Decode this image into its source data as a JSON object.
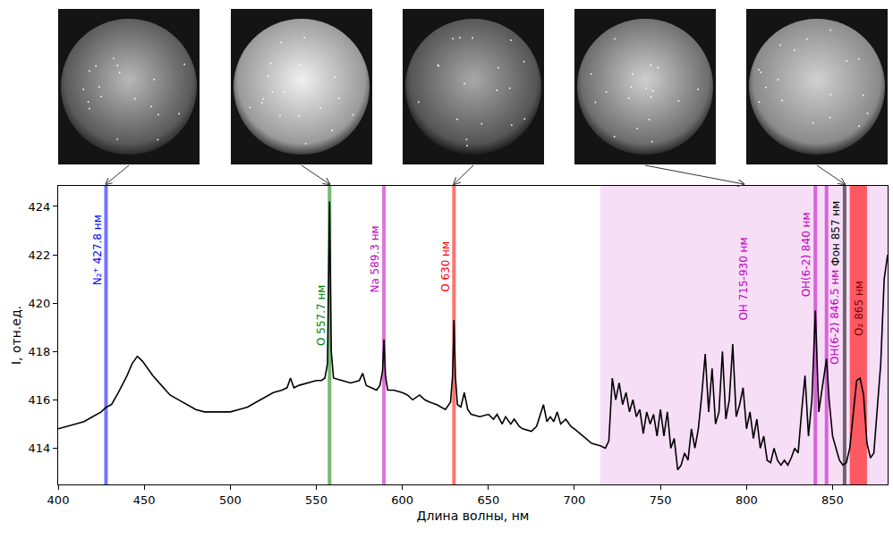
{
  "chart_data": {
    "type": "line",
    "xlabel": "Длина волны, нм",
    "ylabel": "I, отн.ед.",
    "xlim": [
      400,
      882
    ],
    "xticks": [
      400,
      450,
      500,
      550,
      600,
      650,
      700,
      750,
      800,
      850
    ],
    "ylim": [
      412.5,
      424.85
    ],
    "yticks": [
      414,
      416,
      418,
      420,
      422,
      424
    ],
    "grid": false,
    "color": "#000000",
    "x": [
      400,
      405,
      410,
      415,
      420,
      425,
      428,
      431,
      435,
      440,
      443,
      446,
      449,
      452,
      455,
      460,
      465,
      470,
      475,
      480,
      485,
      490,
      495,
      500,
      505,
      510,
      515,
      520,
      525,
      530,
      533,
      535,
      537,
      540,
      545,
      550,
      553,
      555,
      556.5,
      557.7,
      558.7,
      560,
      565,
      570,
      575,
      577,
      579,
      582,
      585,
      587,
      588.5,
      589.3,
      590.2,
      591.5,
      595,
      600,
      603,
      606,
      610,
      613,
      616,
      620,
      625,
      628,
      629.2,
      630,
      630.8,
      632,
      634,
      636,
      638,
      640,
      645,
      650,
      653,
      655,
      658,
      660,
      663,
      665,
      668,
      670,
      675,
      678,
      680,
      682,
      684,
      686,
      688,
      690,
      692,
      695,
      698,
      700,
      705,
      710,
      715,
      718,
      720,
      722,
      724,
      726,
      728,
      730,
      732,
      734,
      736,
      738,
      740,
      742,
      744,
      746,
      748,
      750,
      752,
      754,
      756,
      758,
      760,
      762,
      764,
      766,
      768,
      770,
      772,
      774,
      776,
      778,
      780,
      782,
      784,
      786,
      788,
      790,
      792,
      794,
      796,
      798,
      800,
      802,
      804,
      806,
      808,
      810,
      812,
      814,
      816,
      818,
      820,
      822,
      824,
      826,
      828,
      830,
      832,
      834,
      836,
      838,
      840,
      842,
      844,
      845.5,
      846.5,
      848,
      850,
      852,
      854,
      856,
      858,
      860,
      862,
      864,
      866,
      868,
      870,
      872,
      874,
      876,
      878,
      880,
      882
    ],
    "values": [
      414.8,
      414.9,
      415.0,
      415.1,
      415.3,
      415.5,
      415.7,
      415.8,
      416.3,
      417.0,
      417.5,
      417.8,
      417.6,
      417.3,
      417.0,
      416.6,
      416.2,
      416.0,
      415.8,
      415.6,
      415.5,
      415.5,
      415.5,
      415.5,
      415.6,
      415.7,
      415.9,
      416.1,
      416.3,
      416.4,
      416.5,
      416.9,
      416.5,
      416.6,
      416.7,
      416.8,
      416.8,
      416.9,
      417.5,
      424.2,
      418.0,
      416.9,
      416.8,
      416.7,
      416.8,
      417.1,
      416.6,
      416.5,
      416.4,
      416.6,
      417.2,
      418.5,
      417.0,
      416.4,
      416.4,
      416.3,
      416.2,
      416.0,
      416.2,
      416.0,
      415.9,
      415.8,
      415.6,
      415.9,
      417.0,
      419.3,
      417.0,
      415.8,
      415.7,
      416.3,
      415.6,
      415.4,
      415.3,
      415.4,
      415.2,
      415.4,
      415.0,
      415.3,
      415.0,
      415.2,
      414.9,
      414.8,
      414.7,
      414.9,
      415.4,
      415.8,
      415.1,
      415.3,
      415.1,
      415.5,
      415.0,
      415.2,
      414.9,
      414.8,
      414.5,
      414.2,
      414.1,
      414.0,
      414.3,
      416.9,
      416.0,
      416.7,
      415.8,
      416.3,
      415.5,
      416.0,
      415.3,
      415.6,
      414.6,
      415.5,
      415.0,
      415.4,
      414.5,
      415.6,
      414.5,
      415.5,
      414.0,
      414.4,
      413.1,
      413.3,
      413.8,
      413.5,
      414.8,
      414.0,
      414.8,
      416.2,
      417.9,
      415.5,
      417.3,
      415.0,
      415.5,
      418.0,
      415.2,
      416.0,
      418.3,
      415.3,
      415.8,
      416.5,
      414.8,
      415.5,
      414.4,
      415.2,
      414.0,
      414.5,
      413.5,
      413.4,
      414.0,
      413.5,
      413.3,
      413.5,
      413.3,
      413.6,
      414.0,
      413.8,
      415.5,
      417.0,
      414.5,
      416.0,
      419.7,
      415.5,
      416.5,
      417.2,
      417.7,
      416.0,
      414.5,
      414.0,
      413.5,
      413.3,
      413.4,
      414.0,
      415.5,
      416.8,
      416.9,
      416.2,
      414.2,
      413.6,
      413.8,
      415.5,
      417.5,
      421.0,
      422.0
    ],
    "markers": [
      {
        "label": "N₂⁺ 427.8 нм",
        "x": 427.8,
        "color": "#0000ff"
      },
      {
        "label": "O 557.7 нм",
        "x": 557.7,
        "color": "#008000"
      },
      {
        "label": "Na 589.3 нм",
        "x": 589.3,
        "color": "#bf00bf"
      },
      {
        "label": "O 630 нм",
        "x": 630,
        "color": "#ff0000"
      },
      {
        "label": "OH(6-2) 840 нм",
        "x": 840,
        "color": "#bf00bf"
      },
      {
        "label": "OH(6-2) 846.5 нм",
        "x": 846.5,
        "color": "#bf00bf"
      },
      {
        "label": "Фон 857 нм",
        "x": 857,
        "color": "#000000"
      }
    ],
    "regions": [
      {
        "label": "OH 715-930 нм",
        "x": [
          715,
          930
        ],
        "color": "#bf00bf"
      },
      {
        "label": "O₂ 865 нм",
        "x": [
          860,
          870
        ],
        "color": "#ff0000"
      }
    ],
    "photos": [
      {
        "points_to": "N₂⁺ 427.8 нм"
      },
      {
        "points_to": "O 557.7 нм"
      },
      {
        "points_to": "O 630 нм"
      },
      {
        "points_to": "OH 715-930 нм"
      },
      {
        "points_to": "Фон 857 нм"
      }
    ]
  }
}
